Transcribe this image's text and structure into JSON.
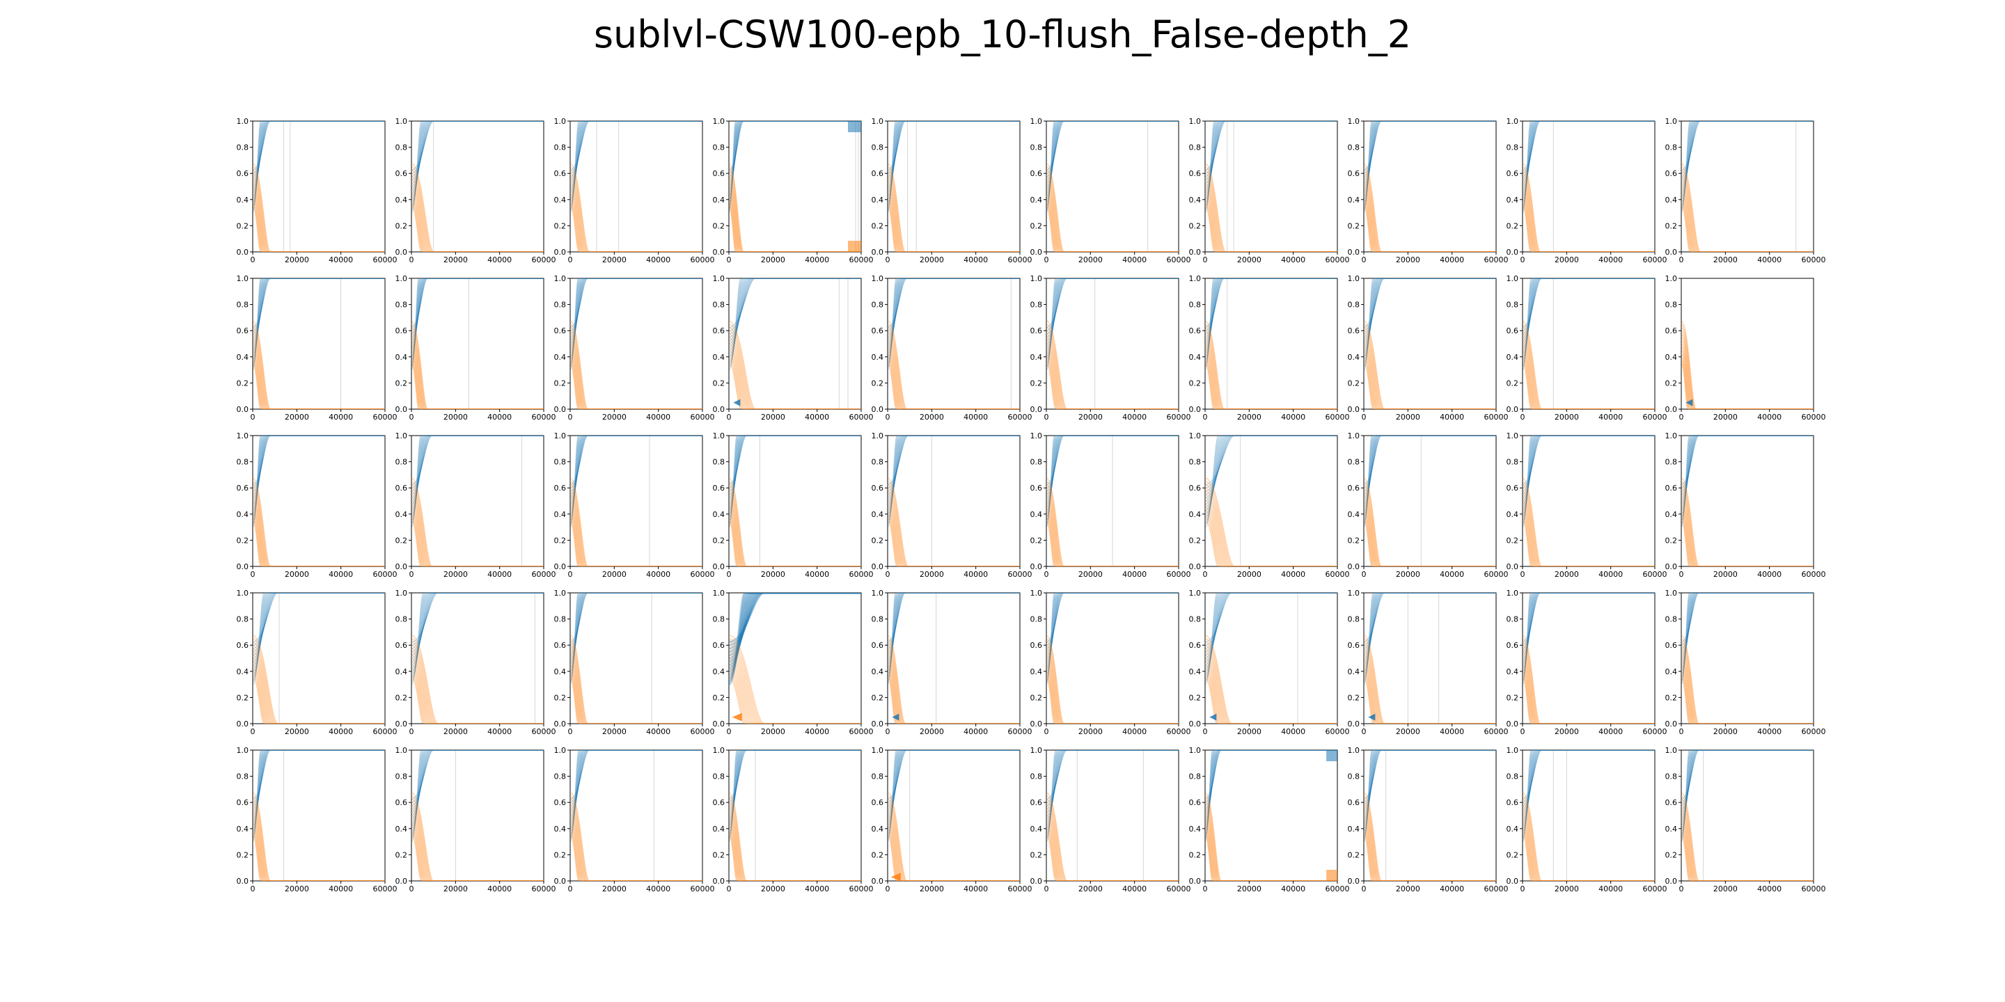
{
  "figure": {
    "title": "sublvl-CSW100-epb_10-flush_False-depth_2"
  },
  "colors": {
    "series_a": "#1f77b4",
    "series_b": "#ff7f0e",
    "axis": "#000000",
    "background": "#ffffff"
  },
  "chart_data": {
    "type": "line",
    "layout": "grid",
    "rows": 5,
    "cols": 10,
    "panels_count": 50,
    "xlim": [
      0,
      60000
    ],
    "ylim": [
      0.0,
      1.0
    ],
    "x_ticks": [
      "0",
      "20000",
      "40000",
      "60000"
    ],
    "y_ticks": [
      "0.0",
      "0.2",
      "0.4",
      "0.6",
      "0.8",
      "1.0"
    ],
    "x_tick_values": [
      0,
      20000,
      40000,
      60000
    ],
    "y_tick_values": [
      0.0,
      0.2,
      0.4,
      0.6,
      0.8,
      1.0
    ],
    "grid": false,
    "legend": "none",
    "series": [
      {
        "color": "#1f77b4",
        "trend": "rises from ~0.5 at x=0 to 1.0 by x≈5000–15000, with faint vertical traces later"
      },
      {
        "color": "#ff7f0e",
        "trend": "falls from ~0.5 at x=0 to 0.0 by x≈5000–15000, with faint vertical traces later"
      }
    ],
    "panels": [
      {
        "settle": 6000,
        "spikes": [
          14000,
          17000
        ]
      },
      {
        "settle": 7500,
        "spikes": [
          10000
        ]
      },
      {
        "settle": 6500,
        "spikes": [
          12000,
          22000
        ]
      },
      {
        "settle": 5000,
        "spikes": [
          57500,
          58800
        ],
        "late_tail": [
          54000,
          60000
        ]
      },
      {
        "settle": 6000,
        "spikes": [
          9000,
          13000
        ]
      },
      {
        "settle": 6000,
        "spikes": [
          46000
        ]
      },
      {
        "settle": 7000,
        "spikes": [
          10000,
          13000
        ]
      },
      {
        "settle": 6000,
        "spikes": []
      },
      {
        "settle": 6000,
        "spikes": [
          14000
        ]
      },
      {
        "settle": 6500,
        "spikes": [
          52000
        ]
      },
      {
        "settle": 6000,
        "spikes": [
          40000
        ]
      },
      {
        "settle": 5500,
        "spikes": [
          26000
        ]
      },
      {
        "settle": 6000,
        "spikes": []
      },
      {
        "settle": 9000,
        "spikes": [
          50000,
          54000
        ],
        "marker_a": 0.05
      },
      {
        "settle": 6500,
        "spikes": [
          56000
        ]
      },
      {
        "settle": 7000,
        "spikes": [
          22000
        ]
      },
      {
        "settle": 6500,
        "spikes": [
          10000
        ]
      },
      {
        "settle": 7000,
        "spikes": []
      },
      {
        "settle": 6500,
        "spikes": [
          14000
        ]
      },
      {
        "settle": 5000,
        "spikes": [],
        "marker_a": 0.05,
        "orange_only": true
      },
      {
        "settle": 6000,
        "spikes": []
      },
      {
        "settle": 7000,
        "spikes": [
          50000
        ]
      },
      {
        "settle": 6000,
        "spikes": [
          36000
        ]
      },
      {
        "settle": 6000,
        "spikes": [
          14000
        ]
      },
      {
        "settle": 7000,
        "spikes": [
          20000
        ]
      },
      {
        "settle": 6000,
        "spikes": [
          30000
        ]
      },
      {
        "settle": 10000,
        "spikes": [
          16000
        ]
      },
      {
        "settle": 6000,
        "spikes": [
          26000
        ]
      },
      {
        "settle": 6500,
        "spikes": []
      },
      {
        "settle": 6000,
        "spikes": []
      },
      {
        "settle": 8500,
        "spikes": [
          12000
        ]
      },
      {
        "settle": 9000,
        "spikes": [
          56000
        ]
      },
      {
        "settle": 6000,
        "spikes": [
          37000
        ]
      },
      {
        "settle": 12000,
        "spikes": [],
        "marker_b": 0.05,
        "blue_wide": true
      },
      {
        "settle": 6000,
        "spikes": [
          22000
        ],
        "marker_a": 0.05
      },
      {
        "settle": 6000,
        "spikes": []
      },
      {
        "settle": 9000,
        "spikes": [
          42000
        ],
        "marker_a": 0.05
      },
      {
        "settle": 7000,
        "spikes": [
          20000,
          34000
        ],
        "marker_a": 0.05
      },
      {
        "settle": 6000,
        "spikes": []
      },
      {
        "settle": 6000,
        "spikes": []
      },
      {
        "settle": 6000,
        "spikes": [
          14000
        ]
      },
      {
        "settle": 7500,
        "spikes": [
          20000
        ]
      },
      {
        "settle": 6500,
        "spikes": [
          38000
        ]
      },
      {
        "settle": 6000,
        "spikes": [
          12000
        ]
      },
      {
        "settle": 6500,
        "spikes": [
          10000
        ],
        "marker_b": 0.03
      },
      {
        "settle": 7000,
        "spikes": [
          14000,
          44000
        ]
      },
      {
        "settle": 5500,
        "spikes": [],
        "late_tail": [
          55000,
          60000
        ]
      },
      {
        "settle": 6000,
        "spikes": [
          10000
        ]
      },
      {
        "settle": 6500,
        "spikes": [
          14000,
          20000
        ]
      },
      {
        "settle": 6000,
        "spikes": [
          10000
        ]
      }
    ]
  }
}
